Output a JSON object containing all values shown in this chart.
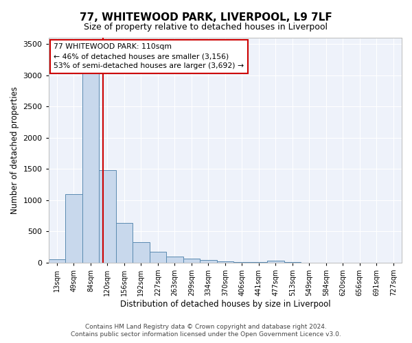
{
  "title": "77, WHITEWOOD PARK, LIVERPOOL, L9 7LF",
  "subtitle": "Size of property relative to detached houses in Liverpool",
  "xlabel": "Distribution of detached houses by size in Liverpool",
  "ylabel": "Number of detached properties",
  "footer_line1": "Contains HM Land Registry data © Crown copyright and database right 2024.",
  "footer_line2": "Contains public sector information licensed under the Open Government Licence v3.0.",
  "annotation_line1": "77 WHITEWOOD PARK: 110sqm",
  "annotation_line2": "← 46% of detached houses are smaller (3,156)",
  "annotation_line3": "53% of semi-detached houses are larger (3,692) →",
  "bar_color": "#c8d8ec",
  "bar_edge_color": "#5a8ab0",
  "vline_color": "#cc0000",
  "bg_color": "#eef2fa",
  "grid_color": "#ffffff",
  "categories": [
    "13sqm",
    "49sqm",
    "84sqm",
    "120sqm",
    "156sqm",
    "192sqm",
    "227sqm",
    "263sqm",
    "299sqm",
    "334sqm",
    "370sqm",
    "406sqm",
    "441sqm",
    "477sqm",
    "513sqm",
    "549sqm",
    "584sqm",
    "620sqm",
    "656sqm",
    "691sqm",
    "727sqm"
  ],
  "values": [
    50,
    1100,
    3050,
    1480,
    640,
    330,
    175,
    100,
    65,
    40,
    22,
    15,
    12,
    30,
    6,
    4,
    3,
    2,
    2,
    2,
    2
  ],
  "vline_position": 2.72,
  "ylim": [
    0,
    3600
  ],
  "yticks": [
    0,
    500,
    1000,
    1500,
    2000,
    2500,
    3000,
    3500
  ],
  "figsize": [
    6.0,
    5.0
  ],
  "dpi": 100
}
